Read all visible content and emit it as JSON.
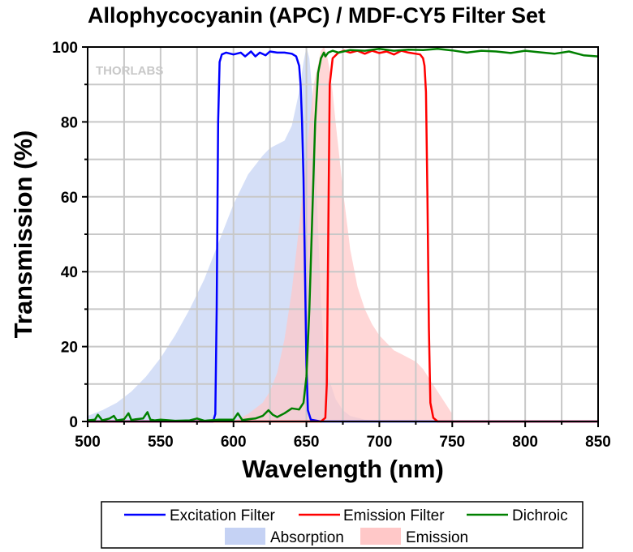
{
  "chart_data": {
    "type": "line",
    "title": "Allophycocyanin (APC) / MDF-CY5 Filter Set",
    "xlabel": "Wavelength (nm)",
    "ylabel": "Transmission (%)",
    "xlim": [
      500,
      850
    ],
    "ylim": [
      0,
      100
    ],
    "xticks": [
      500,
      550,
      600,
      650,
      700,
      750,
      800,
      850
    ],
    "yticks": [
      0,
      20,
      40,
      60,
      80,
      100
    ],
    "grid": true,
    "legend_position": "bottom",
    "watermark": "THORLABS",
    "series": [
      {
        "name": "Excitation Filter",
        "style": "line",
        "color": "#0000ff",
        "x": [
          500,
          580,
          586,
          587.5,
          588.5,
          589.5,
          590.5,
          592,
          595,
          600,
          605,
          608,
          612,
          615,
          618,
          622,
          625,
          630,
          635,
          640,
          643,
          645,
          646,
          647,
          648,
          649,
          650,
          651,
          653,
          660,
          850
        ],
        "y": [
          0,
          0,
          0,
          2,
          30,
          80,
          96,
          98,
          98.5,
          98,
          98.5,
          97.5,
          98.8,
          97.5,
          98.5,
          97.8,
          98.8,
          98.5,
          98.5,
          98.2,
          97.5,
          95,
          90,
          80,
          65,
          40,
          15,
          3,
          0.5,
          0,
          0
        ]
      },
      {
        "name": "Emission Filter",
        "style": "line",
        "color": "#ff0000",
        "x": [
          500,
          660,
          663,
          664,
          665,
          666,
          668,
          672,
          676,
          680,
          685,
          690,
          695,
          700,
          705,
          710,
          715,
          720,
          725,
          728,
          730,
          731,
          732,
          733,
          734,
          735,
          737,
          740,
          850
        ],
        "y": [
          0,
          0,
          1,
          10,
          50,
          90,
          97,
          98.5,
          99,
          98.5,
          99,
          98.2,
          99,
          98.4,
          98.8,
          98,
          99,
          98.5,
          98.2,
          98,
          97,
          95,
          88,
          60,
          25,
          5,
          1,
          0,
          0
        ]
      },
      {
        "name": "Dichroic",
        "style": "line",
        "color": "#008000",
        "x": [
          500,
          505,
          507,
          510,
          515,
          518,
          520,
          525,
          528,
          530,
          533,
          538,
          541,
          543,
          546,
          550,
          560,
          570,
          575,
          580,
          590,
          600,
          603,
          606,
          610,
          615,
          620,
          624,
          627,
          630,
          635,
          640,
          645,
          648,
          650,
          652,
          654,
          656,
          658,
          660,
          662,
          663,
          665,
          668,
          672,
          680,
          690,
          700,
          710,
          720,
          730,
          740,
          750,
          760,
          770,
          780,
          790,
          800,
          810,
          820,
          830,
          840,
          850
        ],
        "y": [
          0.3,
          0.5,
          1.8,
          0.3,
          0.8,
          1.5,
          0.3,
          0.6,
          2.2,
          0.4,
          0.6,
          0.8,
          2.5,
          0.5,
          0.3,
          0.5,
          0.2,
          0.3,
          0.8,
          0.2,
          0.5,
          0.5,
          2.2,
          0.4,
          0.6,
          0.8,
          1.5,
          3,
          1.8,
          1.2,
          2.2,
          3.5,
          3.2,
          5,
          12,
          30,
          55,
          80,
          93,
          97,
          98.5,
          97.5,
          98.5,
          99,
          98.5,
          99.2,
          99,
          99.5,
          99,
          99.3,
          99.2,
          99.5,
          99.1,
          98.5,
          99,
          98.8,
          98.4,
          99,
          98.6,
          98.2,
          98.8,
          97.8,
          97.5
        ]
      },
      {
        "name": "Absorption",
        "style": "area",
        "color": "#c5d2f4",
        "x": [
          500,
          510,
          520,
          530,
          540,
          550,
          560,
          570,
          580,
          590,
          600,
          610,
          620,
          625,
          630,
          635,
          640,
          645,
          648,
          650,
          652,
          654,
          656,
          658,
          660,
          662,
          665,
          670,
          675,
          680,
          690,
          700,
          710,
          720
        ],
        "y": [
          1.5,
          3,
          5,
          8,
          12,
          17,
          23,
          30,
          38,
          48,
          58,
          66,
          71,
          73,
          74,
          75,
          79,
          88,
          96,
          100,
          97,
          88,
          72,
          52,
          32,
          20,
          12,
          6,
          3,
          1.5,
          0.5,
          0.2,
          0.1,
          0
        ]
      },
      {
        "name": "Emission",
        "style": "area",
        "color": "#ffc8c8",
        "x": [
          600,
          610,
          620,
          625,
          630,
          635,
          640,
          645,
          650,
          655,
          660,
          662,
          664,
          666,
          668,
          670,
          675,
          680,
          685,
          690,
          695,
          700,
          705,
          710,
          715,
          720,
          725,
          730,
          735,
          740,
          745,
          750
        ],
        "y": [
          0,
          2,
          5,
          8,
          13,
          22,
          35,
          52,
          72,
          90,
          99,
          100,
          98,
          94,
          88,
          80,
          62,
          46,
          36,
          30,
          26,
          23,
          21,
          19,
          18,
          17,
          16,
          14,
          11,
          8,
          5,
          2
        ]
      }
    ]
  }
}
